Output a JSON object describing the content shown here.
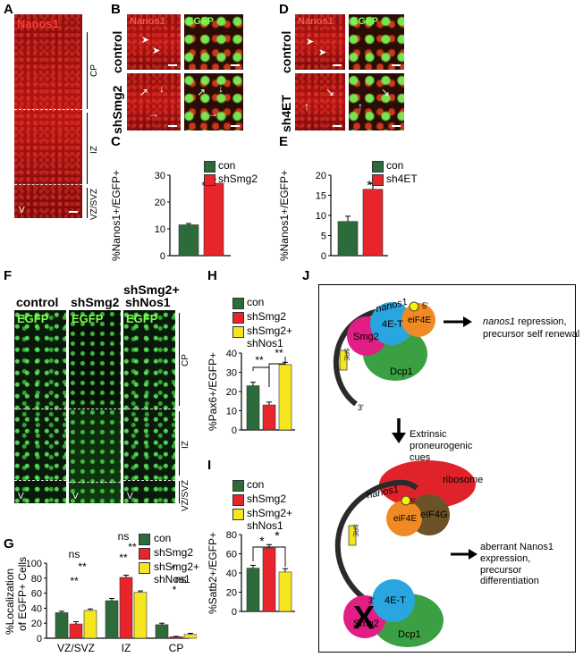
{
  "panels": {
    "A": {
      "letter": "A",
      "channel": "Nanos1",
      "zones": [
        "CP",
        "IZ",
        "VZ/SVZ"
      ],
      "v": "V"
    },
    "B": {
      "letter": "B",
      "row1": "control",
      "row2": "shSmg2",
      "ch1": "Nanos1",
      "ch2": "EGFP"
    },
    "D": {
      "letter": "D",
      "row1": "control",
      "row2": "sh4ET",
      "ch1": "Nanos1",
      "ch2": "EGFP"
    },
    "C": {
      "letter": "C",
      "ylabel": "%Nanos1+/EGFP+",
      "sig": "***",
      "legend": [
        "con",
        "shSmg2"
      ]
    },
    "E": {
      "letter": "E",
      "ylabel": "%Nanos1+/EGFP+",
      "sig": "*",
      "legend": [
        "con",
        "sh4ET"
      ]
    },
    "F": {
      "letter": "F",
      "col1": "control",
      "col2": "shSmg2",
      "col3a": "shSmg2+",
      "col3b": "shNos1",
      "ch": "EGFP",
      "zones": [
        "CP",
        "IZ",
        "VZ/SVZ"
      ],
      "v": "V"
    },
    "G": {
      "letter": "G",
      "ylabel1": "%Localization",
      "ylabel2": "of EGFP+ Cells",
      "legend": [
        "con",
        "shSmg2",
        "shSmg2+",
        "shNos1"
      ],
      "ns": "ns",
      "star": "*",
      "dstar": "**"
    },
    "H": {
      "letter": "H",
      "ylabel": "%Pax6+/EGFP+",
      "legend": [
        "con",
        "shSmg2",
        "shSmg2+",
        "shNos1"
      ],
      "dstar": "**"
    },
    "I": {
      "letter": "I",
      "ylabel": "%Satb2+/EGFP+",
      "legend": [
        "con",
        "shSmg2",
        "shSmg2+",
        "shNos1"
      ],
      "star": "*"
    },
    "J": {
      "letter": "J",
      "top": {
        "mrna": "nanos1",
        "five": "5'",
        "three": "3'",
        "sre": "SRE",
        "smg2": "Smg2",
        "fourEt": "4E-T",
        "eif4e": "eiF4E",
        "dcp1": "Dcp1",
        "out1a": "nanos1",
        "out1b": " repression,",
        "out1c": "precursor self renewal"
      },
      "mid": {
        "cue1": "Extrinsic",
        "cue2": "proneurogenic",
        "cue3": "cues"
      },
      "bottom": {
        "mrna": "nanos1",
        "five": "5'",
        "three": "3'",
        "sre": "SRE",
        "ribosome": "ribosome",
        "eif4g": "eIF4G",
        "eif4e": "eiF4E",
        "fourEt": "4E-T",
        "smg2": "Smg2",
        "dcp1": "Dcp1",
        "x": "X",
        "out2a": "aberrant Nanos1",
        "out2b": "expression,",
        "out2c": "precursor differentiation"
      }
    }
  },
  "colors": {
    "con": "#2e6b3a",
    "sh": "#e8252b",
    "nos": "#f5e61f"
  },
  "chart_data": [
    {
      "id": "C",
      "type": "bar",
      "categories": [
        "con",
        "shSmg2"
      ],
      "values": [
        11.5,
        27
      ],
      "errors": [
        0.5,
        1.5
      ],
      "ylim": [
        0,
        30
      ],
      "yticks": [
        0,
        10,
        20,
        30
      ],
      "ylabel": "%Nanos1+/EGFP+"
    },
    {
      "id": "E",
      "type": "bar",
      "categories": [
        "con",
        "sh4ET"
      ],
      "values": [
        8.5,
        16.5
      ],
      "errors": [
        1.3,
        1.4
      ],
      "ylim": [
        0,
        20
      ],
      "yticks": [
        0,
        5,
        10,
        15,
        20
      ],
      "ylabel": "%Nanos1+/EGFP+"
    },
    {
      "id": "H",
      "type": "bar",
      "categories": [
        "con",
        "shSmg2",
        "shSmg2+ shNos1"
      ],
      "values": [
        23,
        13,
        34
      ],
      "errors": [
        1.8,
        1.5,
        1.2
      ],
      "ylim": [
        0,
        40
      ],
      "yticks": [
        0,
        10,
        20,
        30,
        40
      ],
      "ylabel": "%Pax6+/EGFP+"
    },
    {
      "id": "I",
      "type": "bar",
      "categories": [
        "con",
        "shSmg2",
        "shSmg2+ shNos1"
      ],
      "values": [
        45,
        66,
        41
      ],
      "errors": [
        3,
        3.5,
        3.5
      ],
      "ylim": [
        0,
        80
      ],
      "yticks": [
        0,
        20,
        40,
        60,
        80
      ],
      "ylabel": "%Satb2+/EGFP+"
    },
    {
      "id": "G",
      "type": "bar",
      "categories": [
        "VZ/SVZ",
        "IZ",
        "CP"
      ],
      "series": [
        {
          "name": "con",
          "values": [
            34,
            50,
            18
          ]
        },
        {
          "name": "shSmg2",
          "values": [
            19,
            81,
            2
          ]
        },
        {
          "name": "shSmg2+ shNos1",
          "values": [
            37,
            61,
            5
          ]
        }
      ],
      "errors": [
        [
          2,
          3,
          2
        ],
        [
          3,
          3,
          0.5
        ],
        [
          2,
          2,
          1.5
        ]
      ],
      "ylim": [
        0,
        100
      ],
      "yticks": [
        0,
        20,
        40,
        60,
        80,
        100
      ],
      "ylabel": "%Localization of EGFP+ Cells"
    }
  ]
}
